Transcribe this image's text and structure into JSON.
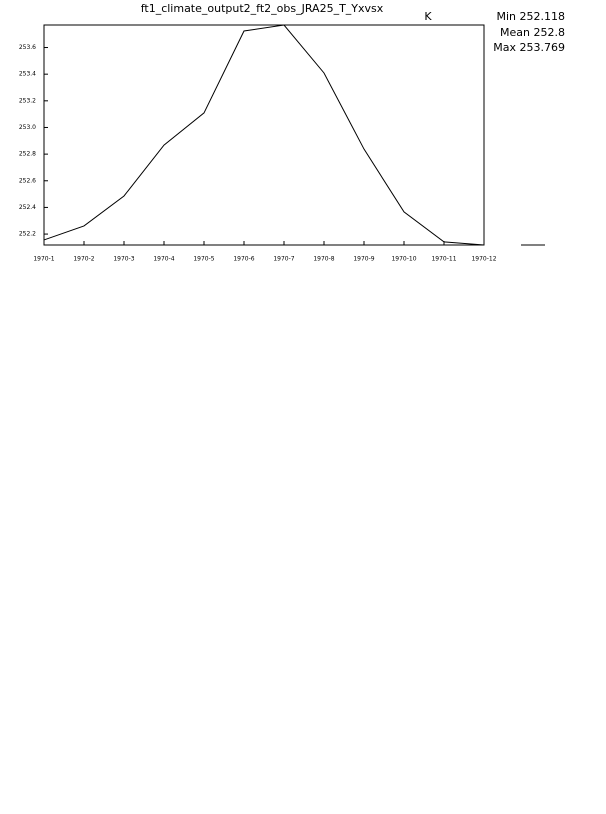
{
  "chart_data": {
    "type": "line",
    "title": "ft1_climate_output2_ft2_obs_JRA25_T_Yxvsx",
    "units": "K",
    "stats": [
      "Min 252.118",
      "Mean 252.8",
      "Max 253.769"
    ],
    "categories": [
      "1970-1",
      "1970-2",
      "1970-3",
      "1970-4",
      "1970-5",
      "1970-6",
      "1970-7",
      "1970-8",
      "1970-9",
      "1970-10",
      "1970-11",
      "1970-12"
    ],
    "series": [
      {
        "color": "#000000",
        "values": [
          252.156,
          252.261,
          252.486,
          252.868,
          253.109,
          253.724,
          253.769,
          253.409,
          252.838,
          252.366,
          252.141,
          252.118
        ]
      }
    ],
    "ylim": [
      252.118,
      253.769
    ],
    "yticks": [
      252.2,
      252.4,
      252.6,
      252.8,
      {
        "value": 253,
        "label": "253.0"
      },
      253.2,
      253.4,
      253.6
    ]
  }
}
